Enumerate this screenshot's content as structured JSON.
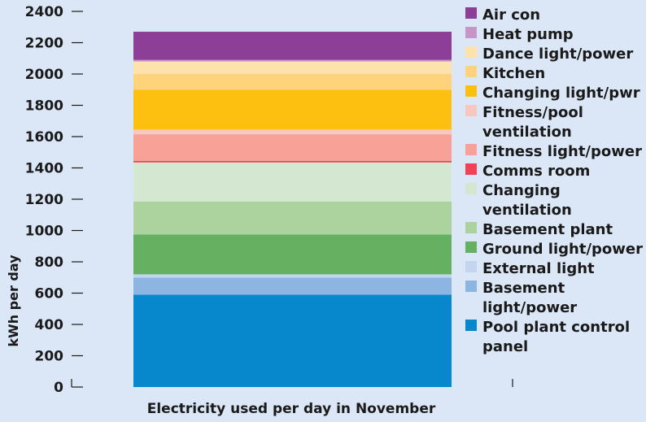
{
  "chart_data": {
    "type": "bar",
    "stacked": true,
    "categories": [
      "Electricity used per day in November"
    ],
    "xlabel": "Electricity used per day in November",
    "ylabel": "kWh per day",
    "ylim": [
      0,
      2400
    ],
    "yticks": [
      0,
      200,
      400,
      600,
      800,
      1000,
      1200,
      1400,
      1600,
      1800,
      2000,
      2200,
      2400
    ],
    "grid": false,
    "legend_position": "right",
    "series": [
      {
        "name": "Pool plant control panel",
        "values": [
          590
        ],
        "color": "#0787cc"
      },
      {
        "name": "Basement light/power",
        "values": [
          110
        ],
        "color": "#8db5e2"
      },
      {
        "name": "External light",
        "values": [
          20
        ],
        "color": "#c3d5ef"
      },
      {
        "name": "Ground light/power",
        "values": [
          255
        ],
        "color": "#65b161"
      },
      {
        "name": "Basement plant",
        "values": [
          210
        ],
        "color": "#acd29e"
      },
      {
        "name": "Changing ventilation",
        "values": [
          250
        ],
        "color": "#d3e7d1"
      },
      {
        "name": "Comms room",
        "values": [
          10
        ],
        "color": "#f04456"
      },
      {
        "name": "Fitness light/power",
        "values": [
          170
        ],
        "color": "#f8a196"
      },
      {
        "name": "Fitness/pool ventilation",
        "values": [
          30
        ],
        "color": "#f8c8c0"
      },
      {
        "name": "Changing light/pwr",
        "values": [
          255
        ],
        "color": "#fdc010"
      },
      {
        "name": "Kitchen",
        "values": [
          100
        ],
        "color": "#fed37c"
      },
      {
        "name": "Dance light/power",
        "values": [
          80
        ],
        "color": "#fee2ab"
      },
      {
        "name": "Heat pump",
        "values": [
          10
        ],
        "color": "#c597c7"
      },
      {
        "name": "Air con",
        "values": [
          180
        ],
        "color": "#8d3e97"
      }
    ],
    "legend_entries": [
      {
        "lines": [
          "Air con"
        ],
        "series": "Air con"
      },
      {
        "lines": [
          "Heat pump"
        ],
        "series": "Heat pump"
      },
      {
        "lines": [
          "Dance light/power"
        ],
        "series": "Dance light/power"
      },
      {
        "lines": [
          "Kitchen"
        ],
        "series": "Kitchen"
      },
      {
        "lines": [
          "Changing light/pwr"
        ],
        "series": "Changing light/pwr"
      },
      {
        "lines": [
          "Fitness/pool",
          "ventilation"
        ],
        "series": "Fitness/pool ventilation"
      },
      {
        "lines": [
          "Fitness light/power"
        ],
        "series": "Fitness light/power"
      },
      {
        "lines": [
          "Comms room"
        ],
        "series": "Comms room"
      },
      {
        "lines": [
          "Changing",
          "ventilation"
        ],
        "series": "Changing ventilation"
      },
      {
        "lines": [
          "Basement plant"
        ],
        "series": "Basement plant"
      },
      {
        "lines": [
          "Ground light/power"
        ],
        "series": "Ground light/power"
      },
      {
        "lines": [
          "External light"
        ],
        "series": "External light"
      },
      {
        "lines": [
          "Basement",
          "light/power"
        ],
        "series": "Basement light/power"
      },
      {
        "lines": [
          "Pool plant control",
          "panel"
        ],
        "series": "Pool plant control panel"
      }
    ]
  }
}
